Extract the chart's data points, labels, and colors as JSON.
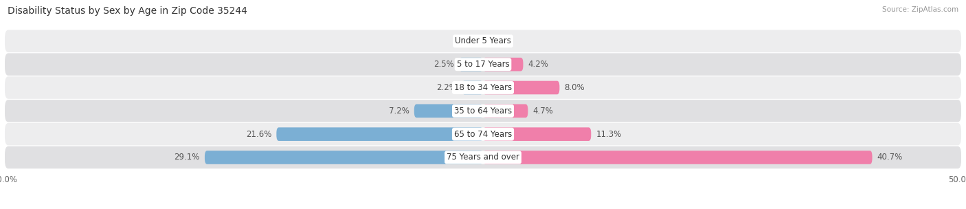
{
  "title": "Disability Status by Sex by Age in Zip Code 35244",
  "source": "Source: ZipAtlas.com",
  "categories": [
    "Under 5 Years",
    "5 to 17 Years",
    "18 to 34 Years",
    "35 to 64 Years",
    "65 to 74 Years",
    "75 Years and over"
  ],
  "male_values": [
    0.0,
    2.5,
    2.2,
    7.2,
    21.6,
    29.1
  ],
  "female_values": [
    0.0,
    4.2,
    8.0,
    4.7,
    11.3,
    40.7
  ],
  "male_color": "#7bafd4",
  "female_color": "#f07faa",
  "row_bg_color_odd": "#ededee",
  "row_bg_color_even": "#e0e0e2",
  "xlim": 50.0,
  "title_fontsize": 10,
  "label_fontsize": 8.5,
  "tick_fontsize": 8.5,
  "bar_height": 0.58,
  "figsize": [
    14.06,
    3.04
  ],
  "dpi": 100
}
